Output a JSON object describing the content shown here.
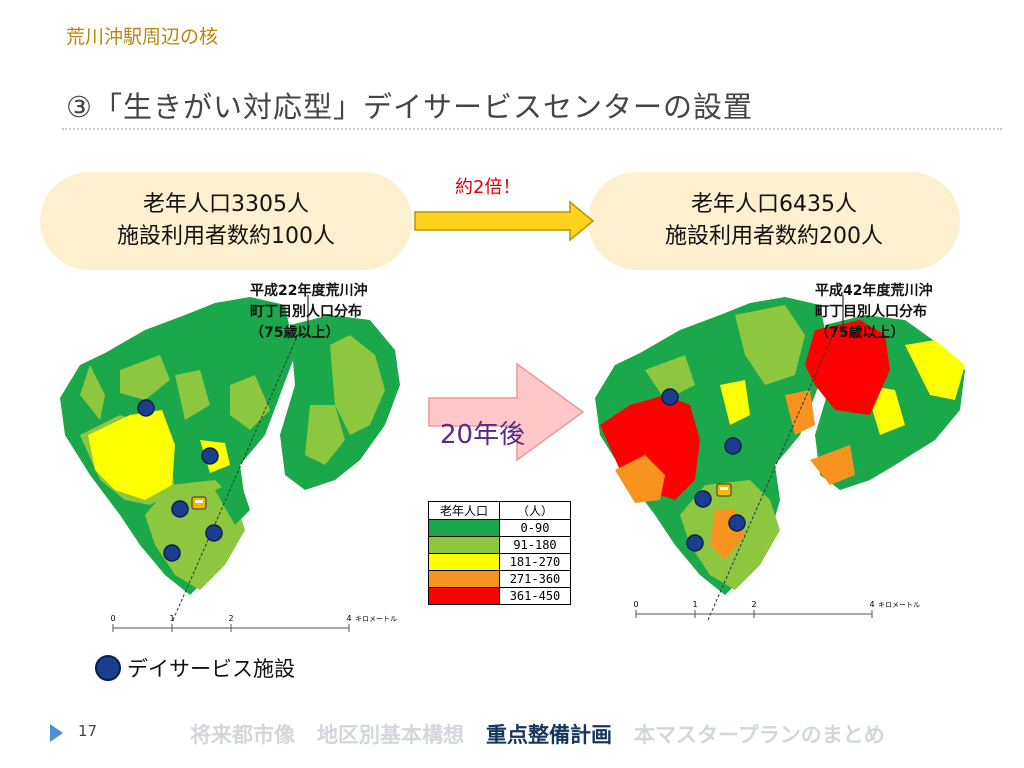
{
  "section_title": "荒川沖駅周辺の核",
  "slide_title": "③「生きがい対応型」デイサービスセンターの設置",
  "before": {
    "line1": "老年人口3305人",
    "line2": "施設利用者数約100人",
    "caption": [
      "平成22年度荒川沖",
      "町丁目別人口分布",
      "（75歳以上）"
    ]
  },
  "after": {
    "line1": "老年人口6435人",
    "line2": "施設利用者数約200人",
    "caption": [
      "平成42年度荒川沖",
      "町丁目別人口分布",
      "（75歳以上）"
    ]
  },
  "ratio_note": "約2倍！",
  "arrow_label": "20年後",
  "legend": {
    "header_left": "老年人口",
    "header_right": "（人）",
    "classes": [
      {
        "label": "0-90",
        "color": "#1aa84a"
      },
      {
        "label": "91-180",
        "color": "#8dc63f"
      },
      {
        "label": "181-270",
        "color": "#ffff00"
      },
      {
        "label": "271-360",
        "color": "#f7931e"
      },
      {
        "label": "361-450",
        "color": "#ff0000"
      }
    ]
  },
  "scale_bar": {
    "ticks": [
      "0",
      "1",
      "2",
      "4"
    ],
    "unit": "キロメートル"
  },
  "facility_legend": "デイサービス施設",
  "page_number": "17",
  "footer_nav": [
    "将来都市像",
    "地区別基本構想",
    "重点整備計画",
    "本マスタープランのまとめ"
  ],
  "footer_nav_active": "重点整備計画",
  "colors": {
    "facility": "#1a3f8f",
    "arrow_yellow": "#ffd21e",
    "arrow_pink": "#ffc7c7",
    "title_gold": "#b8860b",
    "note_red": "#e0000a"
  },
  "icons": [
    "facility-dot-icon",
    "train-station-icon",
    "north-arrow-icon",
    "footer-triangle-icon"
  ]
}
